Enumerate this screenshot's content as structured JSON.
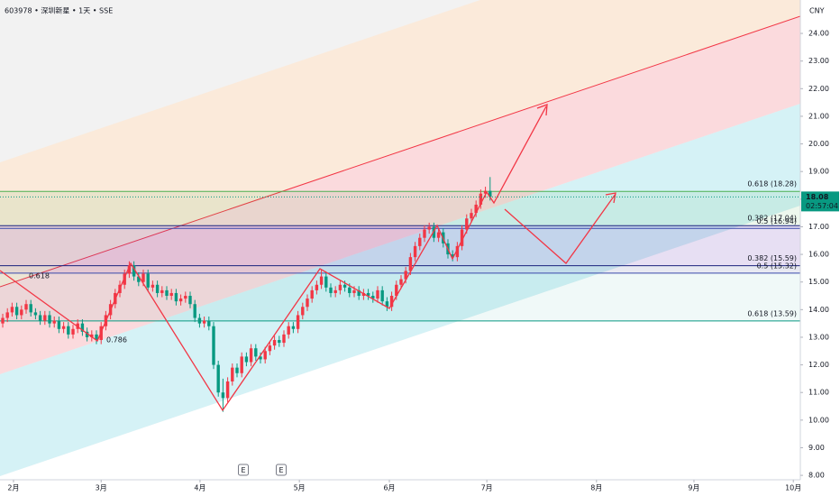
{
  "header": {
    "title": "603978 • 深圳新星 • 1天 • SSE",
    "currency": "CNY"
  },
  "chart_data": {
    "type": "candlestick",
    "up_color": "#f23645",
    "down_color": "#089981",
    "xlim": [
      -0.58,
      170.2
    ],
    "ylim": [
      7.84,
      25.21
    ],
    "xticks": [
      {
        "value": 2.3,
        "label": "2月"
      },
      {
        "value": 21.0,
        "label": "3月"
      },
      {
        "value": 42.1,
        "label": "4月"
      },
      {
        "value": 63.3,
        "label": "5月"
      },
      {
        "value": 82.5,
        "label": "6月"
      },
      {
        "value": 103.3,
        "label": "7月"
      },
      {
        "value": 126.7,
        "label": "8月"
      },
      {
        "value": 147.5,
        "label": "9月"
      },
      {
        "value": 168.7,
        "label": "10月"
      }
    ],
    "yticks": [
      {
        "value": 8,
        "label": "8.00"
      },
      {
        "value": 9,
        "label": "9.00"
      },
      {
        "value": 10,
        "label": "10.00"
      },
      {
        "value": 11,
        "label": "11.00"
      },
      {
        "value": 12,
        "label": "12.00"
      },
      {
        "value": 13,
        "label": "13.00"
      },
      {
        "value": 14,
        "label": "14.00"
      },
      {
        "value": 15,
        "label": "15.00"
      },
      {
        "value": 16,
        "label": "16.00"
      },
      {
        "value": 17,
        "label": "17.00"
      },
      {
        "value": 18,
        "label": "18.00"
      },
      {
        "value": 19,
        "label": "19.00"
      },
      {
        "value": 20,
        "label": "20.00"
      },
      {
        "value": 21,
        "label": "21.00"
      },
      {
        "value": 22,
        "label": "22.00"
      },
      {
        "value": 23,
        "label": "23.00"
      },
      {
        "value": 24,
        "label": "24.00"
      }
    ],
    "candles": [
      [
        13.5,
        13.85,
        13.35,
        13.7
      ],
      [
        13.7,
        14.05,
        13.55,
        13.9
      ],
      [
        13.9,
        14.25,
        13.75,
        14.1
      ],
      [
        14.1,
        14.25,
        13.65,
        13.8
      ],
      [
        13.8,
        14.15,
        13.65,
        14.0
      ],
      [
        14.0,
        14.35,
        13.85,
        14.2
      ],
      [
        14.2,
        14.35,
        13.75,
        13.9
      ],
      [
        13.9,
        14.05,
        13.65,
        13.8
      ],
      [
        13.8,
        13.95,
        13.45,
        13.6
      ],
      [
        13.6,
        13.95,
        13.45,
        13.8
      ],
      [
        13.8,
        13.95,
        13.35,
        13.5
      ],
      [
        13.5,
        13.75,
        13.35,
        13.6
      ],
      [
        13.6,
        13.75,
        13.15,
        13.3
      ],
      [
        13.3,
        13.55,
        13.15,
        13.4
      ],
      [
        13.4,
        13.55,
        12.95,
        13.1
      ],
      [
        13.1,
        13.45,
        12.95,
        13.3
      ],
      [
        13.3,
        13.65,
        13.15,
        13.5
      ],
      [
        13.5,
        13.65,
        13.05,
        13.2
      ],
      [
        13.2,
        13.35,
        12.85,
        13.0
      ],
      [
        13.0,
        13.25,
        12.85,
        13.1
      ],
      [
        13.1,
        13.25,
        12.75,
        12.9
      ],
      [
        12.9,
        13.55,
        12.75,
        13.4
      ],
      [
        13.4,
        13.95,
        13.25,
        13.8
      ],
      [
        13.8,
        14.35,
        13.65,
        14.2
      ],
      [
        14.2,
        14.75,
        14.05,
        14.6
      ],
      [
        14.6,
        15.05,
        14.45,
        14.9
      ],
      [
        14.9,
        15.45,
        14.75,
        15.3
      ],
      [
        15.3,
        15.75,
        15.15,
        15.6
      ],
      [
        15.6,
        15.75,
        15.05,
        15.2
      ],
      [
        15.2,
        15.35,
        14.85,
        15.0
      ],
      [
        15.0,
        15.45,
        14.85,
        15.3
      ],
      [
        15.3,
        15.45,
        14.65,
        14.8
      ],
      [
        14.8,
        15.05,
        14.65,
        14.9
      ],
      [
        14.9,
        15.05,
        14.45,
        14.6
      ],
      [
        14.6,
        14.85,
        14.45,
        14.7
      ],
      [
        14.7,
        14.85,
        14.35,
        14.5
      ],
      [
        14.5,
        14.75,
        14.35,
        14.6
      ],
      [
        14.6,
        14.75,
        14.15,
        14.3
      ],
      [
        14.3,
        14.55,
        14.15,
        14.4
      ],
      [
        14.4,
        14.65,
        14.25,
        14.5
      ],
      [
        14.5,
        14.65,
        14.05,
        14.2
      ],
      [
        14.2,
        14.35,
        13.55,
        13.7
      ],
      [
        13.7,
        13.85,
        13.35,
        13.5
      ],
      [
        13.5,
        13.75,
        13.35,
        13.6
      ],
      [
        13.6,
        13.75,
        13.25,
        13.4
      ],
      [
        13.4,
        13.55,
        11.85,
        12.0
      ],
      [
        12.0,
        12.15,
        10.85,
        11.0
      ],
      [
        11.0,
        11.5,
        10.3,
        10.8
      ],
      [
        10.8,
        11.55,
        10.65,
        11.4
      ],
      [
        11.4,
        12.05,
        11.25,
        11.9
      ],
      [
        11.9,
        12.05,
        11.55,
        11.7
      ],
      [
        11.7,
        12.45,
        11.55,
        12.3
      ],
      [
        12.3,
        12.45,
        11.95,
        12.1
      ],
      [
        12.1,
        12.75,
        11.95,
        12.6
      ],
      [
        12.6,
        12.75,
        12.15,
        12.3
      ],
      [
        12.3,
        12.45,
        12.05,
        12.2
      ],
      [
        12.2,
        12.65,
        12.05,
        12.5
      ],
      [
        12.5,
        12.85,
        12.35,
        12.7
      ],
      [
        12.7,
        13.05,
        12.55,
        12.9
      ],
      [
        12.9,
        13.05,
        12.65,
        12.8
      ],
      [
        12.8,
        13.25,
        12.65,
        13.1
      ],
      [
        13.1,
        13.55,
        12.95,
        13.4
      ],
      [
        13.4,
        13.55,
        13.15,
        13.3
      ],
      [
        13.3,
        13.95,
        13.15,
        13.8
      ],
      [
        13.8,
        14.25,
        13.65,
        14.1
      ],
      [
        14.1,
        14.55,
        13.95,
        14.4
      ],
      [
        14.4,
        14.85,
        14.25,
        14.7
      ],
      [
        14.7,
        15.05,
        14.55,
        14.9
      ],
      [
        14.9,
        15.45,
        14.75,
        15.2
      ],
      [
        15.2,
        15.35,
        14.65,
        14.8
      ],
      [
        14.8,
        14.95,
        14.45,
        14.6
      ],
      [
        14.6,
        14.85,
        14.45,
        14.7
      ],
      [
        14.7,
        15.05,
        14.55,
        14.9
      ],
      [
        14.9,
        15.05,
        14.65,
        14.8
      ],
      [
        14.8,
        14.95,
        14.45,
        14.6
      ],
      [
        14.6,
        14.85,
        14.45,
        14.7
      ],
      [
        14.7,
        14.85,
        14.35,
        14.5
      ],
      [
        14.5,
        14.75,
        14.35,
        14.6
      ],
      [
        14.6,
        14.75,
        14.35,
        14.5
      ],
      [
        14.5,
        14.65,
        14.25,
        14.4
      ],
      [
        14.4,
        14.85,
        14.25,
        14.7
      ],
      [
        14.7,
        14.85,
        14.15,
        14.3
      ],
      [
        14.3,
        14.45,
        13.95,
        14.1
      ],
      [
        14.1,
        14.65,
        13.95,
        14.5
      ],
      [
        14.5,
        15.05,
        14.35,
        14.9
      ],
      [
        14.9,
        15.25,
        14.75,
        15.1
      ],
      [
        15.1,
        15.55,
        14.95,
        15.4
      ],
      [
        15.4,
        16.05,
        15.25,
        15.9
      ],
      [
        15.9,
        16.45,
        15.75,
        16.3
      ],
      [
        16.3,
        16.75,
        16.15,
        16.6
      ],
      [
        16.6,
        17.05,
        16.45,
        16.9
      ],
      [
        16.9,
        17.15,
        16.75,
        17.0
      ],
      [
        17.0,
        17.15,
        16.45,
        16.6
      ],
      [
        16.6,
        16.95,
        16.45,
        16.8
      ],
      [
        16.8,
        16.95,
        16.25,
        16.4
      ],
      [
        16.4,
        16.55,
        15.85,
        16.0
      ],
      [
        16.0,
        16.15,
        15.75,
        15.9
      ],
      [
        15.9,
        16.45,
        15.75,
        16.3
      ],
      [
        16.3,
        17.05,
        16.15,
        16.9
      ],
      [
        16.9,
        17.45,
        16.75,
        17.3
      ],
      [
        17.3,
        17.65,
        17.15,
        17.5
      ],
      [
        17.5,
        17.95,
        17.35,
        17.8
      ],
      [
        17.8,
        18.35,
        17.65,
        18.2
      ],
      [
        18.2,
        18.45,
        18.05,
        18.3
      ],
      [
        18.3,
        18.8,
        17.95,
        18.08
      ]
    ],
    "last_price": 18.08,
    "countdown": "02:57:04",
    "price_color": "#089981",
    "fib_levels": [
      {
        "label": "0.618 (18.28)",
        "value": 18.28,
        "color": "#4caf50"
      },
      {
        "label": "0.382 (17.04)",
        "value": 17.04,
        "color": "#1a237e"
      },
      {
        "label": "0.5 (16.94)",
        "value": 16.94,
        "color": "#3949ab"
      },
      {
        "label": "0.382 (15.59)",
        "value": 15.59,
        "color": "#1a237e"
      },
      {
        "label": "0.5 (15.32)",
        "value": 15.32,
        "color": "#3949ab"
      },
      {
        "label": "0.618 (13.59)",
        "value": 13.59,
        "color": "#089981"
      }
    ],
    "annotations": [
      "0.618",
      "0.786"
    ],
    "events": [
      "E",
      "E"
    ]
  }
}
